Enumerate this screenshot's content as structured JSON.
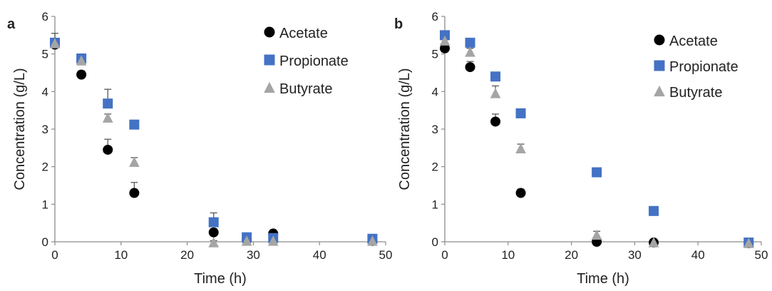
{
  "chart_data": [
    {
      "panel": "a",
      "type": "scatter",
      "xlabel": "Time (h)",
      "ylabel": "Concentration (g/L)",
      "xlim": [
        0,
        50
      ],
      "ylim": [
        0,
        6
      ],
      "xticks": [
        "0",
        "10",
        "20",
        "30",
        "40",
        "50"
      ],
      "yticks": [
        "0",
        "1",
        "2",
        "3",
        "4",
        "5",
        "6"
      ],
      "grid": false,
      "legend_position": "top-right",
      "series": [
        {
          "name": "Acetate",
          "marker": "circle",
          "color": "#000000",
          "x": [
            0,
            4,
            8,
            12,
            24,
            29,
            33,
            48
          ],
          "y": [
            5.25,
            4.45,
            2.45,
            1.3,
            0.25,
            0.05,
            0.22,
            0.02
          ],
          "err": [
            0.1,
            0.1,
            0.28,
            0.28,
            0.1,
            0.05,
            0.05,
            0.02
          ]
        },
        {
          "name": "Propionate",
          "marker": "square",
          "color": "#4472C4",
          "x": [
            0,
            4,
            8,
            12,
            24,
            29,
            33,
            48
          ],
          "y": [
            5.3,
            4.88,
            3.68,
            3.12,
            0.52,
            0.12,
            0.1,
            0.08
          ],
          "err": [
            0.25,
            0.1,
            0.38,
            0.05,
            0.25,
            0.05,
            0.05,
            0.05
          ]
        },
        {
          "name": "Butyrate",
          "marker": "triangle",
          "color": "#A5A5A5",
          "x": [
            0,
            4,
            8,
            12,
            24,
            29,
            33,
            48
          ],
          "y": [
            5.28,
            4.82,
            3.3,
            2.12,
            -0.02,
            0.02,
            0.02,
            0.02
          ],
          "err": [
            0.1,
            0.1,
            0.1,
            0.12,
            0.05,
            0.05,
            0.05,
            0.05
          ]
        }
      ]
    },
    {
      "panel": "b",
      "type": "scatter",
      "xlabel": "Time (h)",
      "ylabel": "Concentration (g/L)",
      "xlim": [
        0,
        50
      ],
      "ylim": [
        0,
        6
      ],
      "xticks": [
        "0",
        "10",
        "20",
        "30",
        "40",
        "50"
      ],
      "yticks": [
        "0",
        "1",
        "2",
        "3",
        "4",
        "5",
        "6"
      ],
      "grid": false,
      "legend_position": "top-right",
      "series": [
        {
          "name": "Acetate",
          "marker": "circle",
          "color": "#000000",
          "x": [
            0,
            4,
            8,
            12,
            24,
            33,
            48
          ],
          "y": [
            5.15,
            4.65,
            3.2,
            1.3,
            0.0,
            -0.02,
            -0.04
          ],
          "err": [
            0.15,
            0.15,
            0.2,
            0.1,
            0.05,
            0.05,
            0.03
          ]
        },
        {
          "name": "Propionate",
          "marker": "square",
          "color": "#4472C4",
          "x": [
            0,
            4,
            8,
            12,
            24,
            33,
            48
          ],
          "y": [
            5.5,
            5.3,
            4.4,
            3.42,
            1.85,
            0.82,
            -0.02
          ],
          "err": [
            0.05,
            0.05,
            0.05,
            0.05,
            0.05,
            0.05,
            0.03
          ]
        },
        {
          "name": "Butyrate",
          "marker": "triangle",
          "color": "#A5A5A5",
          "x": [
            0,
            4,
            8,
            12,
            24,
            33,
            48
          ],
          "y": [
            5.35,
            5.05,
            3.95,
            2.48,
            0.18,
            -0.02,
            -0.04
          ],
          "err": [
            0.1,
            0.1,
            0.2,
            0.12,
            0.1,
            0.05,
            0.03
          ]
        }
      ]
    }
  ]
}
